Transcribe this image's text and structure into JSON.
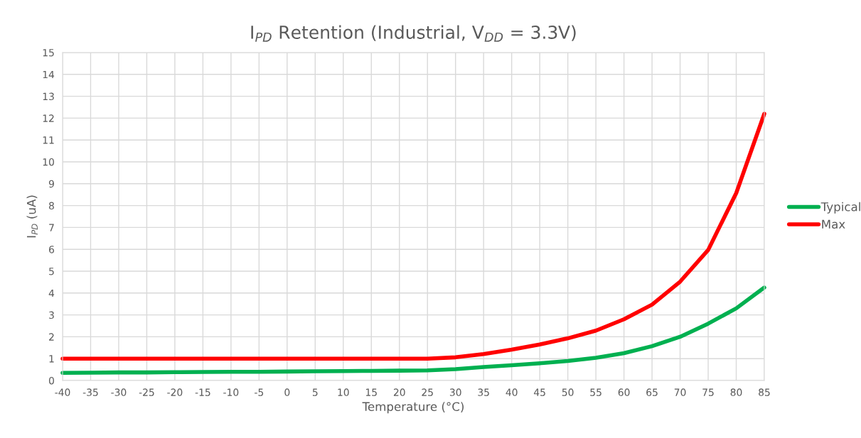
{
  "chart_data": {
    "type": "line",
    "title": "I$_{PD}$ Retention (Industrial, V$_{DD}$ = 3.3V)",
    "xlabel": "Temperature (°C)",
    "ylabel": "I$_{PD}$ (uA)",
    "x": [
      -40,
      -35,
      -30,
      -25,
      -20,
      -15,
      -10,
      -5,
      0,
      5,
      10,
      15,
      20,
      25,
      30,
      35,
      40,
      45,
      50,
      55,
      60,
      65,
      70,
      75,
      80,
      85
    ],
    "series": [
      {
        "name": "Typical",
        "color": "#00b050",
        "values": [
          0.35,
          0.36,
          0.37,
          0.37,
          0.38,
          0.39,
          0.4,
          0.4,
          0.41,
          0.42,
          0.43,
          0.44,
          0.45,
          0.46,
          0.52,
          0.62,
          0.7,
          0.79,
          0.89,
          1.04,
          1.25,
          1.57,
          2.0,
          2.6,
          3.3,
          4.25
        ]
      },
      {
        "name": "Max",
        "color": "#ff0000",
        "values": [
          1.0,
          1.0,
          1.0,
          1.0,
          1.0,
          1.0,
          1.0,
          1.0,
          1.0,
          1.0,
          1.0,
          1.0,
          1.0,
          1.0,
          1.06,
          1.21,
          1.41,
          1.65,
          1.93,
          2.28,
          2.8,
          3.47,
          4.52,
          5.97,
          8.57,
          12.2
        ]
      }
    ],
    "xlim": [
      -40,
      85
    ],
    "xticks": [
      -40,
      -35,
      -30,
      -25,
      -20,
      -15,
      -10,
      -5,
      0,
      5,
      10,
      15,
      20,
      25,
      30,
      35,
      40,
      45,
      50,
      55,
      60,
      65,
      70,
      75,
      80,
      85
    ],
    "ylim": [
      0,
      15
    ],
    "yticks": [
      0,
      1,
      2,
      3,
      4,
      5,
      6,
      7,
      8,
      9,
      10,
      11,
      12,
      13,
      14,
      15
    ],
    "grid": true,
    "legend": "right",
    "marker": "none",
    "line_style": "solid"
  }
}
